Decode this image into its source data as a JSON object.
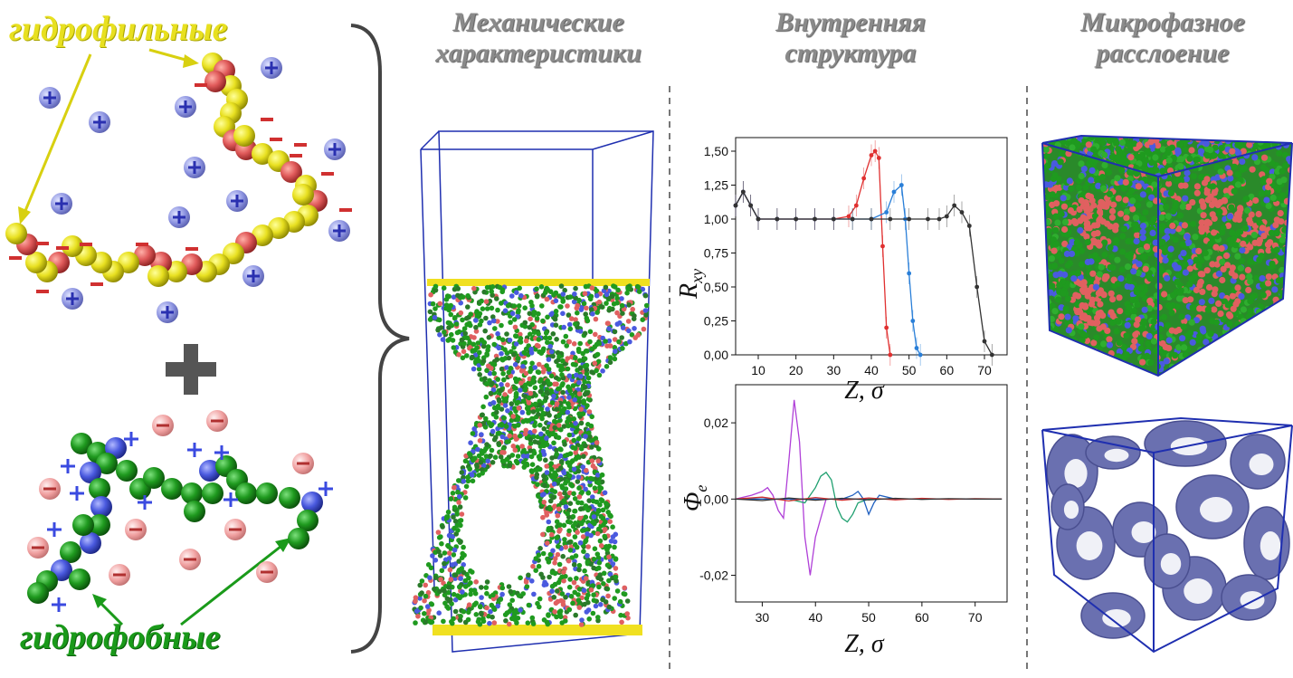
{
  "labels": {
    "hydrophilic": "гидрофильные",
    "hydrophobic": "гидрофобные",
    "plus_sign": "+"
  },
  "headers": {
    "mechanical_line1": "Механические",
    "mechanical_line2": "характеристики",
    "internal_line1": "Внутренняя",
    "internal_line2": "структура",
    "microphase_line1": "Микрофазное",
    "microphase_line2": "расслоение"
  },
  "colors": {
    "hydrophilic_bead": "#e8e020",
    "charged_red_bead": "#e05a5a",
    "hydrophobic_bead": "#1f9a1f",
    "charged_blue_bead": "#4a5adf",
    "counterion_blue": "#8c93e0",
    "counterion_red": "#f0a0a0",
    "box_blue": "#1f2fb0",
    "isosurface": "#6a70b0"
  },
  "icons": {
    "brace": "right-brace-icon",
    "plus": "plus-icon"
  },
  "chart_data": [
    {
      "type": "line",
      "xlabel": "Z, σ",
      "ylabel": "R_xy",
      "xlim": [
        4,
        76
      ],
      "ylim": [
        0,
        1.6
      ],
      "xticks": [
        "10",
        "20",
        "30",
        "40",
        "50",
        "60",
        "70"
      ],
      "yticks": [
        "0,00",
        "0,25",
        "0,50",
        "0,75",
        "1,00",
        "1,25",
        "1,50"
      ],
      "series": [
        {
          "color": "#e03030",
          "x": [
            4,
            6,
            8,
            10,
            15,
            20,
            25,
            30,
            34,
            36,
            38,
            40,
            41,
            42,
            43,
            44,
            45
          ],
          "y": [
            1.1,
            1.2,
            1.1,
            1.0,
            1.0,
            1.0,
            1.0,
            1.0,
            1.02,
            1.1,
            1.3,
            1.47,
            1.5,
            1.45,
            0.8,
            0.2,
            0.0
          ]
        },
        {
          "color": "#2a7fd8",
          "x": [
            4,
            6,
            8,
            10,
            15,
            20,
            25,
            30,
            35,
            40,
            44,
            46,
            48,
            49,
            50,
            51,
            52,
            53
          ],
          "y": [
            1.1,
            1.2,
            1.1,
            1.0,
            1.0,
            1.0,
            1.0,
            1.0,
            1.0,
            1.0,
            1.05,
            1.2,
            1.25,
            1.0,
            0.6,
            0.25,
            0.05,
            0.0
          ]
        },
        {
          "color": "#333333",
          "x": [
            4,
            6,
            8,
            10,
            15,
            20,
            25,
            30,
            35,
            40,
            45,
            50,
            55,
            58,
            60,
            62,
            64,
            66,
            68,
            70,
            72
          ],
          "y": [
            1.1,
            1.2,
            1.1,
            1.0,
            1.0,
            1.0,
            1.0,
            1.0,
            1.0,
            1.0,
            1.0,
            1.0,
            1.0,
            1.0,
            1.02,
            1.1,
            1.05,
            0.95,
            0.5,
            0.1,
            0.0
          ]
        }
      ]
    },
    {
      "type": "line",
      "xlabel": "Z, σ",
      "ylabel": "Φe",
      "xlim": [
        25,
        76
      ],
      "ylim": [
        -0.027,
        0.03
      ],
      "xticks": [
        "30",
        "40",
        "50",
        "60",
        "70"
      ],
      "yticks": [
        "-0,02",
        "0,00",
        "0,02"
      ],
      "series": [
        {
          "color": "#b040d8",
          "x": [
            25,
            28,
            30,
            31,
            32,
            33,
            34,
            35,
            36,
            37,
            38,
            39,
            40,
            42,
            45,
            50,
            55,
            60,
            65,
            70,
            75
          ],
          "y": [
            0,
            0.001,
            0.002,
            0.003,
            0.001,
            -0.003,
            -0.005,
            0.01,
            0.026,
            0.015,
            -0.01,
            -0.02,
            -0.01,
            0.0,
            0,
            0,
            0,
            0,
            0,
            0,
            0
          ]
        },
        {
          "color": "#20a070",
          "x": [
            25,
            30,
            35,
            38,
            40,
            41,
            42,
            43,
            44,
            45,
            46,
            47,
            48,
            50,
            55,
            60,
            65,
            70,
            75
          ],
          "y": [
            0,
            0,
            0,
            -0.001,
            0.003,
            0.006,
            0.007,
            0.005,
            -0.002,
            -0.005,
            -0.006,
            -0.004,
            -0.001,
            0,
            0,
            0,
            0,
            0,
            0
          ]
        },
        {
          "color": "#2060c0",
          "x": [
            25,
            30,
            35,
            40,
            45,
            47,
            48,
            49,
            50,
            51,
            52,
            55,
            60,
            65,
            70,
            75
          ],
          "y": [
            0,
            0,
            0,
            0,
            0,
            0.001,
            0.002,
            0.0,
            -0.004,
            -0.001,
            0.001,
            0,
            0,
            0,
            0,
            0
          ]
        },
        {
          "color": "#d03030",
          "x": [
            25,
            30,
            35,
            40,
            45,
            50,
            55,
            60,
            65,
            70,
            75
          ],
          "y": [
            0,
            0.0005,
            -0.0005,
            0.0004,
            -0.0003,
            0.0003,
            -0.0002,
            0.0002,
            -0.0001,
            0.0001,
            0
          ]
        },
        {
          "color": "#333333",
          "x": [
            25,
            30,
            35,
            40,
            45,
            50,
            55,
            60,
            65,
            70,
            75
          ],
          "y": [
            0,
            -0.0004,
            0.0003,
            -0.0003,
            0.0002,
            -0.0002,
            0.0002,
            -0.0001,
            0.0001,
            0,
            0
          ]
        }
      ]
    }
  ]
}
